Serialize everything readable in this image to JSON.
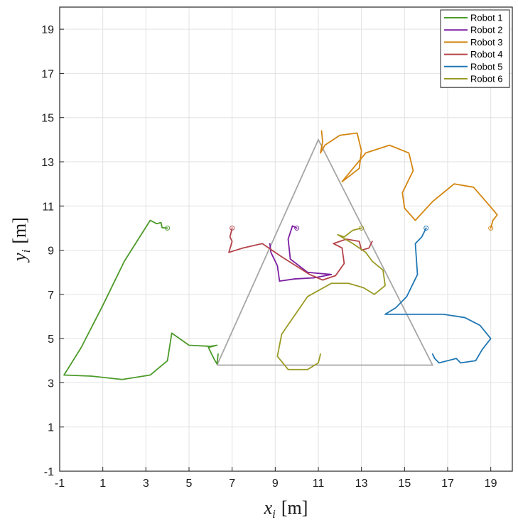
{
  "chart_data": {
    "type": "line",
    "title": "",
    "xlabel": {
      "var": "x",
      "sub": "i",
      "unit": "[m]"
    },
    "ylabel": {
      "var": "y",
      "sub": "i",
      "unit": "[m]"
    },
    "xlim": [
      -1,
      20
    ],
    "ylim": [
      -1,
      20
    ],
    "xticks": [
      -1,
      1,
      3,
      5,
      7,
      9,
      11,
      13,
      15,
      17,
      19
    ],
    "yticks": [
      -1,
      1,
      3,
      5,
      7,
      9,
      11,
      13,
      15,
      17,
      19
    ],
    "grid": true,
    "legend_position": "top-right",
    "formation": {
      "color": "#a6a6a6",
      "points": [
        [
          6.3,
          3.8
        ],
        [
          11.0,
          14.0
        ],
        [
          16.3,
          3.8
        ],
        [
          6.3,
          3.8
        ]
      ]
    },
    "series": [
      {
        "name": "Robot 1",
        "color": "#4c9a2a",
        "path": [
          [
            4.0,
            10.0
          ],
          [
            3.75,
            10.02
          ],
          [
            3.7,
            10.25
          ],
          [
            3.5,
            10.2
          ],
          [
            3.2,
            10.35
          ],
          [
            2.0,
            8.5
          ],
          [
            1.0,
            6.5
          ],
          [
            0.0,
            4.6
          ],
          [
            -0.8,
            3.35
          ],
          [
            0.5,
            3.3
          ],
          [
            1.9,
            3.15
          ],
          [
            3.2,
            3.35
          ],
          [
            4.0,
            4.0
          ],
          [
            4.2,
            5.25
          ],
          [
            5.0,
            4.7
          ],
          [
            6.0,
            4.65
          ],
          [
            6.3,
            4.7
          ],
          [
            5.9,
            4.6
          ],
          [
            6.15,
            4.1
          ],
          [
            6.3,
            3.85
          ],
          [
            6.35,
            4.3
          ]
        ]
      },
      {
        "name": "Robot 2",
        "color": "#7b1fa2",
        "path": [
          [
            10.0,
            10.0
          ],
          [
            9.9,
            10.05
          ],
          [
            9.8,
            10.1
          ],
          [
            9.6,
            9.5
          ],
          [
            9.7,
            8.6
          ],
          [
            10.5,
            8.0
          ],
          [
            11.6,
            7.9
          ],
          [
            10.8,
            7.75
          ],
          [
            9.9,
            7.7
          ],
          [
            9.2,
            7.6
          ],
          [
            9.1,
            8.3
          ],
          [
            8.8,
            8.9
          ],
          [
            8.75,
            9.3
          ]
        ]
      },
      {
        "name": "Robot 3",
        "color": "#d4850f",
        "path": [
          [
            19.0,
            10.0
          ],
          [
            19.1,
            10.35
          ],
          [
            19.3,
            10.6
          ],
          [
            19.0,
            10.95
          ],
          [
            18.2,
            11.85
          ],
          [
            17.3,
            12.0
          ],
          [
            16.3,
            11.2
          ],
          [
            15.5,
            10.35
          ],
          [
            15.0,
            10.9
          ],
          [
            14.9,
            11.6
          ],
          [
            15.4,
            12.6
          ],
          [
            15.2,
            13.4
          ],
          [
            14.3,
            13.75
          ],
          [
            13.2,
            13.4
          ],
          [
            12.1,
            12.1
          ],
          [
            12.9,
            12.7
          ],
          [
            13.0,
            13.5
          ],
          [
            12.8,
            14.3
          ],
          [
            12.0,
            14.2
          ],
          [
            11.3,
            13.75
          ],
          [
            11.1,
            13.4
          ],
          [
            11.2,
            13.9
          ],
          [
            11.15,
            14.4
          ]
        ]
      },
      {
        "name": "Robot 4",
        "color": "#b5434a",
        "path": [
          [
            7.0,
            10.0
          ],
          [
            6.9,
            9.6
          ],
          [
            7.0,
            9.4
          ],
          [
            6.85,
            8.9
          ],
          [
            7.5,
            9.1
          ],
          [
            8.4,
            9.3
          ],
          [
            9.3,
            8.7
          ],
          [
            10.6,
            7.9
          ],
          [
            11.2,
            7.65
          ],
          [
            11.8,
            7.85
          ],
          [
            12.2,
            8.4
          ],
          [
            12.1,
            9.1
          ],
          [
            11.7,
            9.3
          ],
          [
            12.3,
            9.5
          ],
          [
            12.9,
            9.4
          ],
          [
            13.0,
            9.0
          ],
          [
            13.35,
            9.1
          ],
          [
            13.5,
            9.4
          ]
        ]
      },
      {
        "name": "Robot 5",
        "color": "#1f77b4",
        "path": [
          [
            16.0,
            10.0
          ],
          [
            15.8,
            9.6
          ],
          [
            15.5,
            9.3
          ],
          [
            15.6,
            7.9
          ],
          [
            15.1,
            6.9
          ],
          [
            14.6,
            6.4
          ],
          [
            14.1,
            6.1
          ],
          [
            15.5,
            6.1
          ],
          [
            16.8,
            6.1
          ],
          [
            17.8,
            5.95
          ],
          [
            18.5,
            5.6
          ],
          [
            19.0,
            5.0
          ],
          [
            18.6,
            4.5
          ],
          [
            18.3,
            4.0
          ],
          [
            17.6,
            3.9
          ],
          [
            17.4,
            4.1
          ],
          [
            17.0,
            4.0
          ],
          [
            16.6,
            3.9
          ],
          [
            16.4,
            4.1
          ],
          [
            16.3,
            4.3
          ]
        ]
      },
      {
        "name": "Robot 6",
        "color": "#9a9a25",
        "path": [
          [
            13.0,
            10.0
          ],
          [
            12.6,
            9.9
          ],
          [
            12.2,
            9.6
          ],
          [
            11.9,
            9.7
          ],
          [
            12.6,
            9.3
          ],
          [
            13.2,
            8.9
          ],
          [
            13.5,
            8.5
          ],
          [
            14.0,
            8.1
          ],
          [
            14.1,
            7.4
          ],
          [
            13.6,
            7.0
          ],
          [
            13.1,
            7.3
          ],
          [
            12.4,
            7.5
          ],
          [
            11.6,
            7.5
          ],
          [
            10.5,
            6.9
          ],
          [
            9.3,
            5.2
          ],
          [
            9.1,
            4.2
          ],
          [
            9.6,
            3.6
          ],
          [
            10.5,
            3.6
          ],
          [
            11.0,
            3.9
          ],
          [
            11.1,
            4.3
          ]
        ]
      }
    ]
  }
}
